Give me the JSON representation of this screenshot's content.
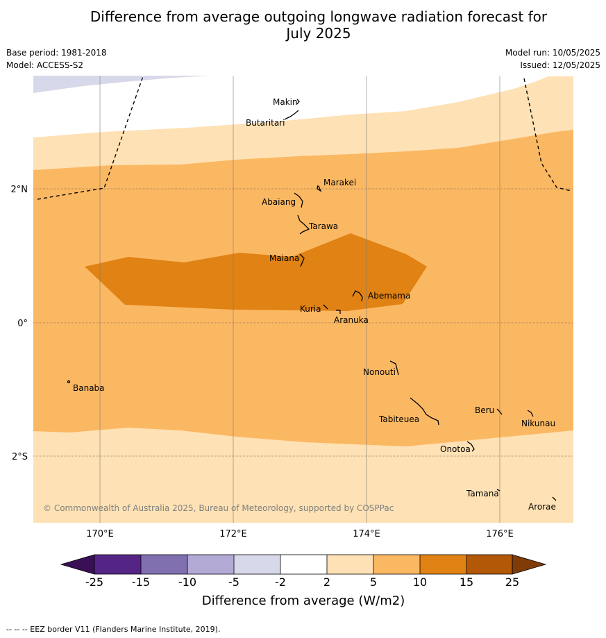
{
  "title": {
    "line1": "Difference from average outgoing longwave radiation forecast for",
    "line2": "July 2025"
  },
  "meta": {
    "base_period": "Base period: 1981-2018",
    "model": "Model: ACCESS-S2",
    "model_run": "Model run: 10/05/2025",
    "issued": "Issued: 12/05/2025"
  },
  "map": {
    "lon_ticks": [
      "170°E",
      "172°E",
      "174°E",
      "176°E"
    ],
    "lat_ticks": [
      "2°N",
      "0°",
      "2°S"
    ],
    "copyright": "© Commonwealth of Australia 2025, Bureau of Meteorology, supported by COSPPac",
    "islands": [
      {
        "name": "Makin"
      },
      {
        "name": "Butaritari"
      },
      {
        "name": "Marakei"
      },
      {
        "name": "Abaiang"
      },
      {
        "name": "Tarawa"
      },
      {
        "name": "Maiana"
      },
      {
        "name": "Abemama"
      },
      {
        "name": "Kuria"
      },
      {
        "name": "Aranuka"
      },
      {
        "name": "Nonouti"
      },
      {
        "name": "Banaba"
      },
      {
        "name": "Tabiteuea"
      },
      {
        "name": "Beru"
      },
      {
        "name": "Nikunau"
      },
      {
        "name": "Onotoa"
      },
      {
        "name": "Tamana"
      },
      {
        "name": "Arorae"
      }
    ]
  },
  "colorbar": {
    "label": "Difference from average (W/m2)",
    "ticks": [
      "-25",
      "-15",
      "-10",
      "-5",
      "-2",
      "2",
      "5",
      "10",
      "15",
      "25"
    ],
    "colors": {
      "lt_-25": "#3b0f56",
      "-25_-15": "#552586",
      "-15_-10": "#8170b0",
      "-10_-5": "#b2aad4",
      "-5_-2": "#d8d8eb",
      "-2_2": "#ffffff",
      "2_5": "#fee1b4",
      "5_10": "#fbb862",
      "10_15": "#e08214",
      "15_25": "#b35806",
      "gt_25": "#7f3b08"
    }
  },
  "footer": "-- -- -- EEZ border V11 (Flanders Marine Institute, 2019)."
}
